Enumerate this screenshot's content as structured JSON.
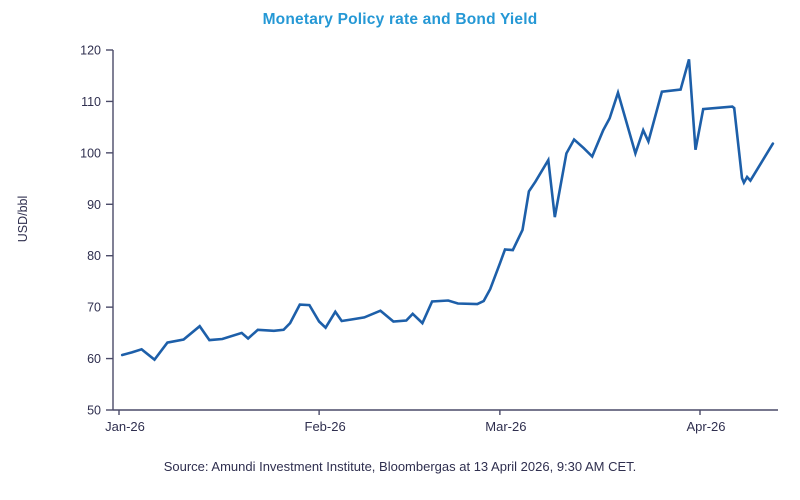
{
  "colors": {
    "title": "#2598d5",
    "line": "#1d5fa9",
    "text": "#2f2f4f",
    "axis": "#4a4a68"
  },
  "source_note": "Source: Amundi Investment Institute, Bloombergas at 13 April 2026, 9:30 AM CET.",
  "chart_data": {
    "type": "line",
    "title": "Monetary Policy rate and Bond Yield",
    "xlabel": "",
    "ylabel": "USD/bbl",
    "ylim": [
      50,
      120
    ],
    "yticks": [
      50,
      60,
      70,
      80,
      90,
      100,
      110,
      120
    ],
    "xticks": [
      {
        "label": "Jan-26",
        "day": 0
      },
      {
        "label": "Feb-26",
        "day": 31
      },
      {
        "label": "Mar-26",
        "day": 59
      },
      {
        "label": "Apr-26",
        "day": 90
      }
    ],
    "x_unit": "days from 1 Jan 2026",
    "grid": false,
    "legend": "none",
    "series": [
      {
        "points": [
          [
            0.5,
            60.7
          ],
          [
            2,
            61.2
          ],
          [
            3.5,
            61.8
          ],
          [
            5.5,
            59.8
          ],
          [
            7.5,
            63.1
          ],
          [
            10,
            63.7
          ],
          [
            12.5,
            66.3
          ],
          [
            14,
            63.6
          ],
          [
            16,
            63.8
          ],
          [
            19,
            65.0
          ],
          [
            20,
            63.9
          ],
          [
            21.5,
            65.6
          ],
          [
            24,
            65.4
          ],
          [
            25.5,
            65.6
          ],
          [
            26.5,
            66.9
          ],
          [
            28,
            70.5
          ],
          [
            29.5,
            70.4
          ],
          [
            31,
            67.2
          ],
          [
            32,
            66.0
          ],
          [
            33.5,
            69.1
          ],
          [
            34.5,
            67.3
          ],
          [
            36,
            67.6
          ],
          [
            38,
            68.0
          ],
          [
            40.5,
            69.3
          ],
          [
            42.5,
            67.2
          ],
          [
            44.5,
            67.4
          ],
          [
            45.5,
            68.7
          ],
          [
            47,
            66.9
          ],
          [
            48.5,
            71.1
          ],
          [
            51,
            71.3
          ],
          [
            52.5,
            70.7
          ],
          [
            55.5,
            70.6
          ],
          [
            56.5,
            71.2
          ],
          [
            57.5,
            73.5
          ],
          [
            59,
            78.5
          ],
          [
            59.8,
            81.2
          ],
          [
            61,
            81.1
          ],
          [
            62.5,
            85.0
          ],
          [
            63.5,
            92.5
          ],
          [
            64.5,
            94.4
          ],
          [
            66.5,
            98.6
          ],
          [
            67.5,
            87.5
          ],
          [
            69.3,
            99.9
          ],
          [
            70.5,
            102.6
          ],
          [
            72,
            100.9
          ],
          [
            73.3,
            99.3
          ],
          [
            75,
            104.4
          ],
          [
            76,
            106.7
          ],
          [
            77.3,
            111.7
          ],
          [
            80,
            99.9
          ],
          [
            81.2,
            104.4
          ],
          [
            82,
            102.2
          ],
          [
            84.1,
            111.9
          ],
          [
            87,
            112.3
          ],
          [
            88.3,
            118.2
          ],
          [
            89.3,
            100.6
          ],
          [
            90.5,
            108.5
          ],
          [
            95,
            109.0
          ],
          [
            95.3,
            108.7
          ],
          [
            96.5,
            95.1
          ],
          [
            96.8,
            94.2
          ],
          [
            97.3,
            95.3
          ],
          [
            97.8,
            94.6
          ],
          [
            101.3,
            101.8
          ]
        ]
      }
    ]
  }
}
